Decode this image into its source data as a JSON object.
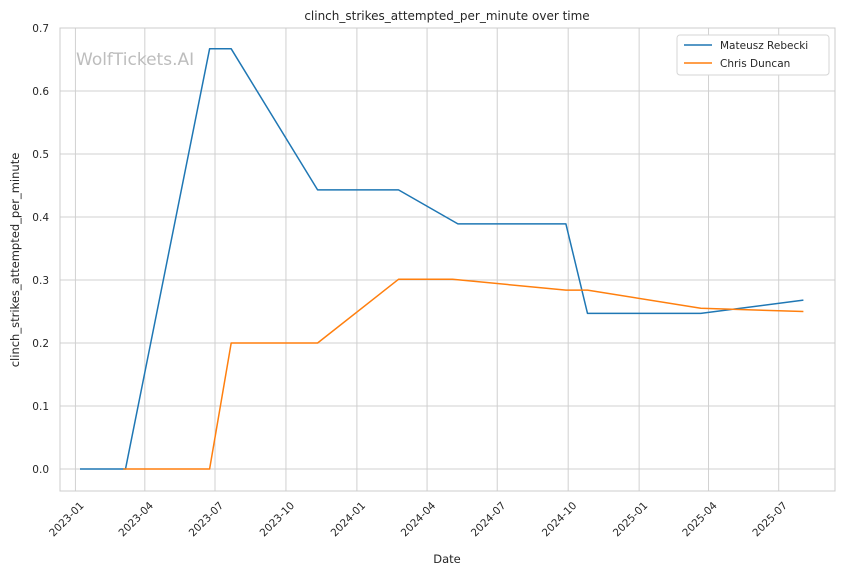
{
  "watermark": "WolfTickets.AI",
  "chart_data": {
    "type": "line",
    "title": "clinch_strikes_attempted_per_minute over time",
    "xlabel": "Date",
    "ylabel": "clinch_strikes_attempted_per_minute",
    "x_ticks": [
      "2023-01",
      "2023-04",
      "2023-07",
      "2023-10",
      "2024-01",
      "2024-04",
      "2024-07",
      "2024-10",
      "2025-01",
      "2025-04",
      "2025-07"
    ],
    "y_ticks": [
      "0.0",
      "0.1",
      "0.2",
      "0.3",
      "0.4",
      "0.5",
      "0.6",
      "0.7"
    ],
    "ylim": [
      -0.035,
      0.7
    ],
    "xlim": [
      "2022-12-12",
      "2025-09-12"
    ],
    "grid": true,
    "legend_position": "top-right",
    "series": [
      {
        "name": "Mateusz Rebecki",
        "color": "#1f77b4",
        "points": [
          [
            "2023-01-07",
            0.0
          ],
          [
            "2023-03-07",
            0.0
          ],
          [
            "2023-06-24",
            0.667
          ],
          [
            "2023-07-22",
            0.667
          ],
          [
            "2023-11-11",
            0.443
          ],
          [
            "2024-02-24",
            0.443
          ],
          [
            "2024-05-11",
            0.389
          ],
          [
            "2024-09-28",
            0.389
          ],
          [
            "2024-10-26",
            0.247
          ],
          [
            "2025-03-22",
            0.247
          ],
          [
            "2025-08-02",
            0.268
          ]
        ]
      },
      {
        "name": "Chris Duncan",
        "color": "#ff7f0e",
        "points": [
          [
            "2023-03-04",
            0.0
          ],
          [
            "2023-06-24",
            0.0
          ],
          [
            "2023-07-22",
            0.2
          ],
          [
            "2023-11-11",
            0.2
          ],
          [
            "2024-02-24",
            0.301
          ],
          [
            "2024-05-04",
            0.301
          ],
          [
            "2024-09-28",
            0.284
          ],
          [
            "2024-10-26",
            0.284
          ],
          [
            "2025-03-22",
            0.255
          ],
          [
            "2025-08-02",
            0.25
          ]
        ]
      }
    ]
  }
}
